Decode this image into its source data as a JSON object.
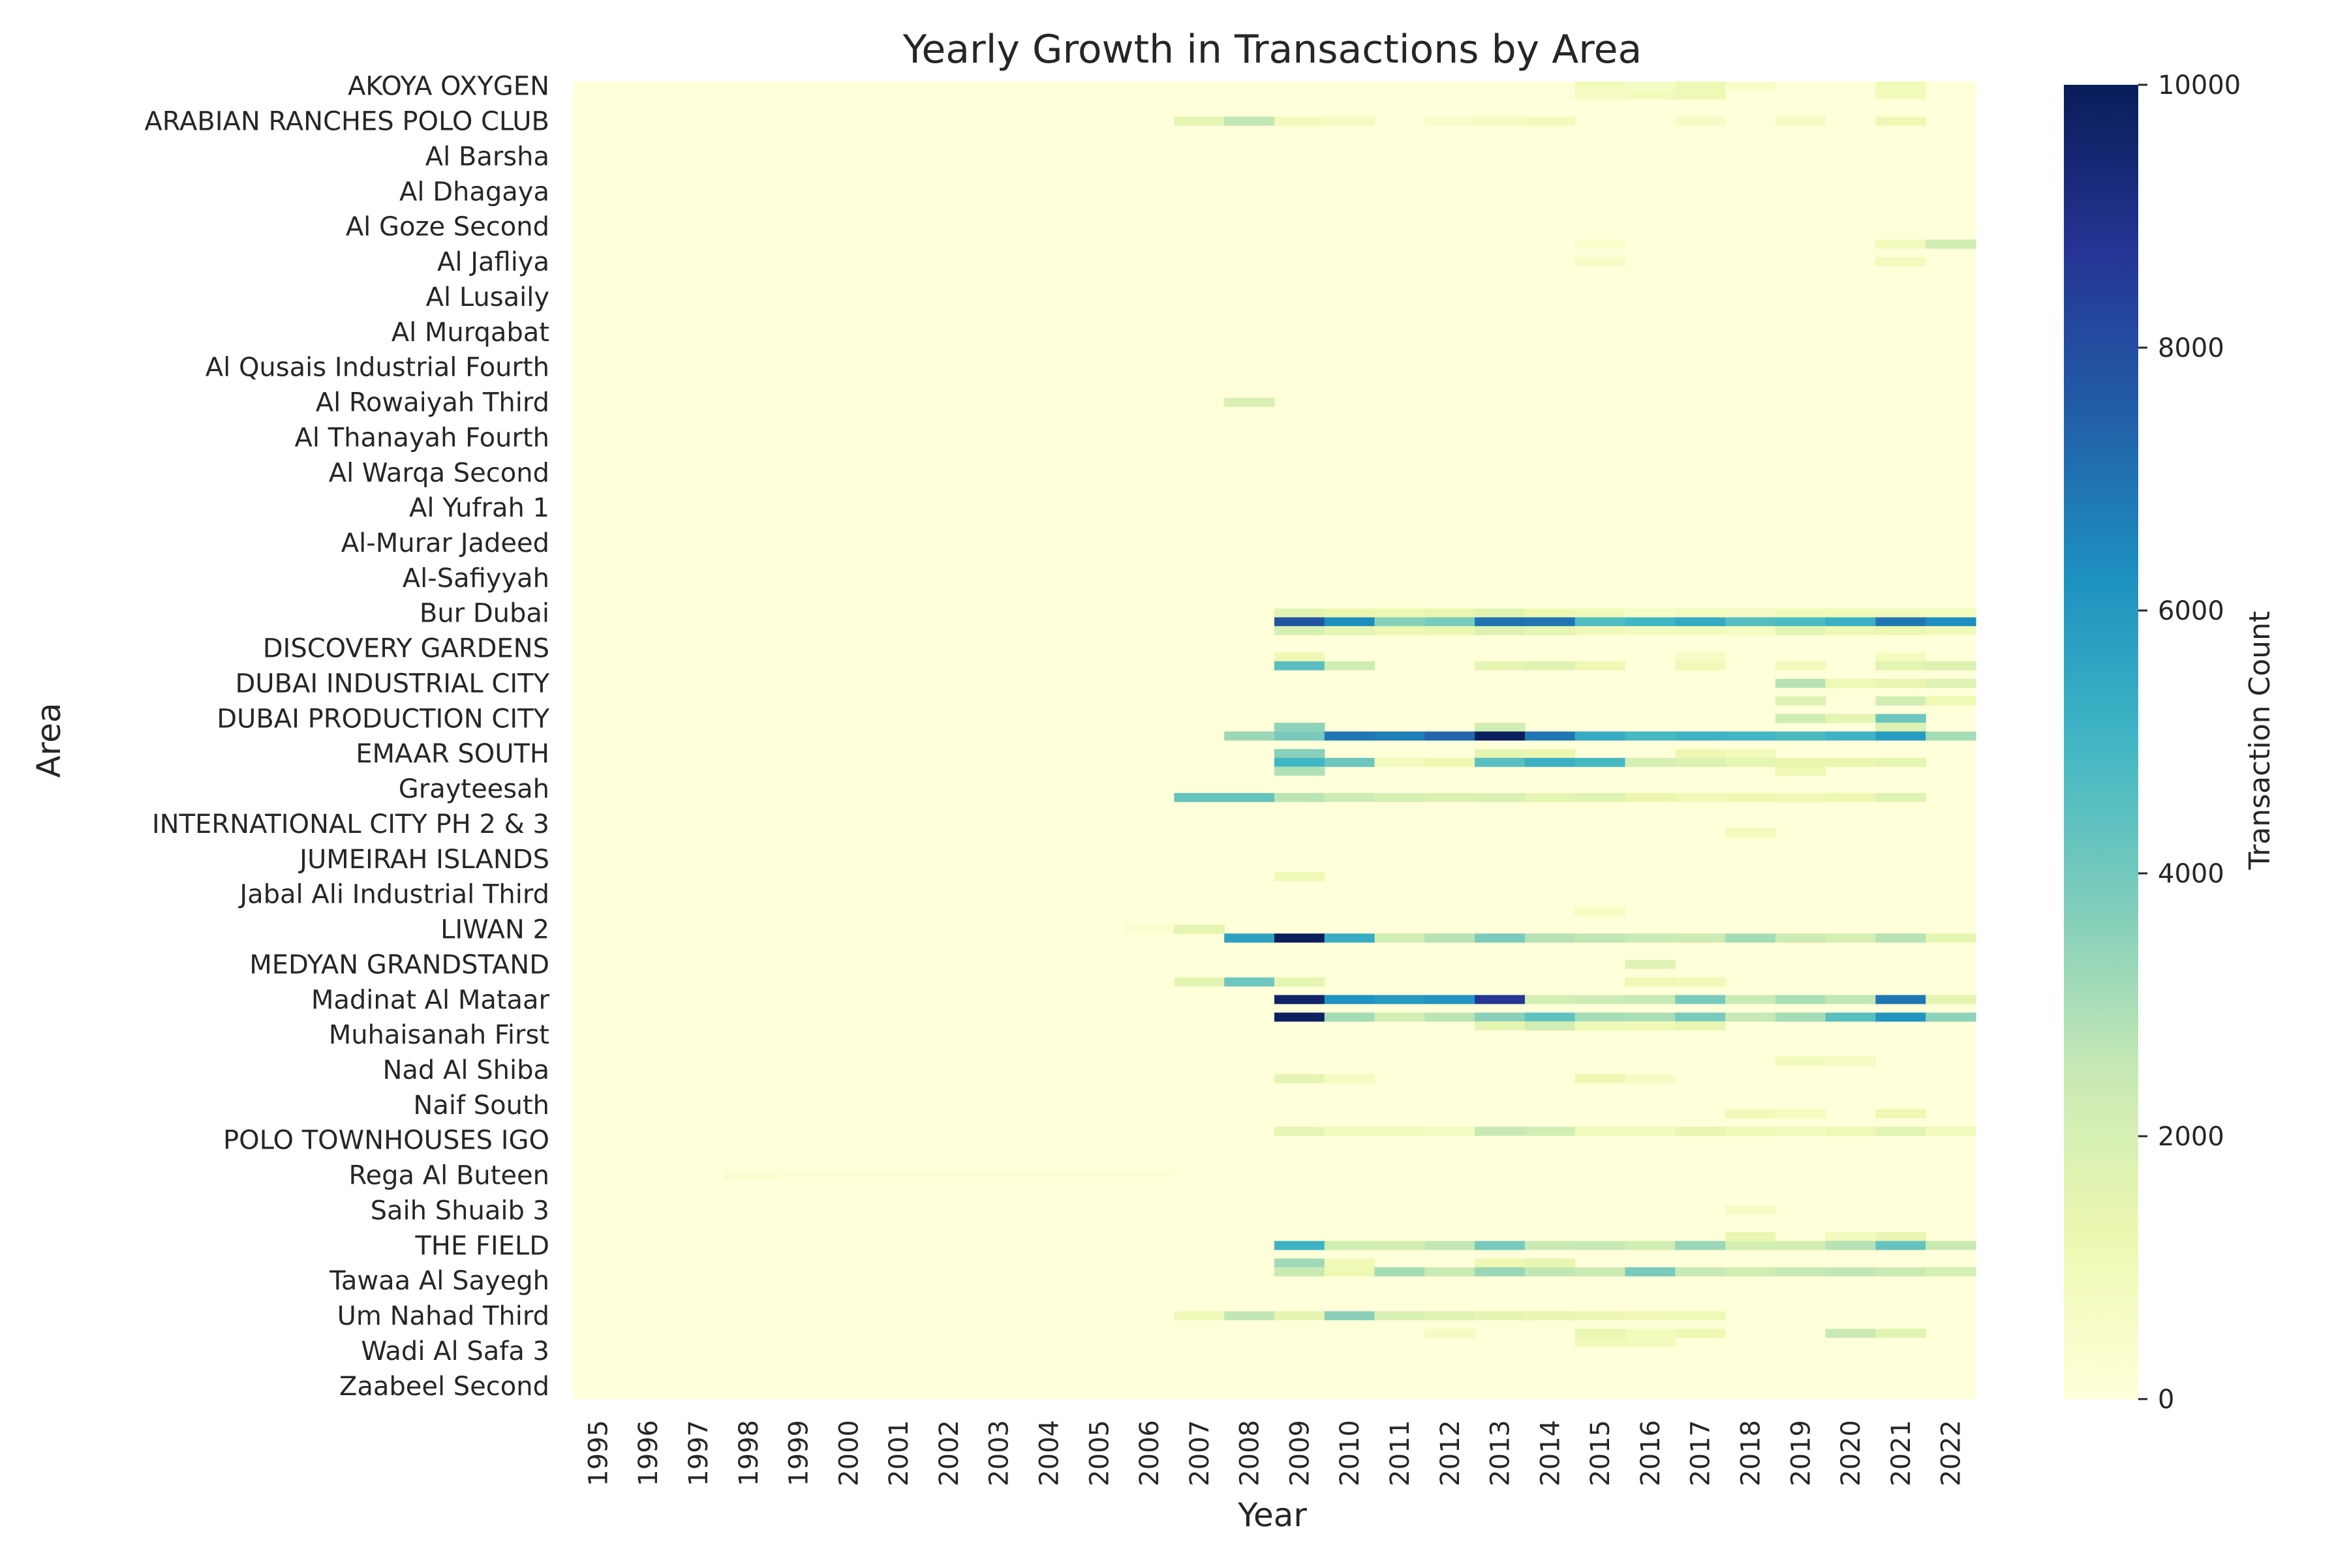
{
  "chart_data": {
    "type": "heatmap",
    "title": "Yearly Growth in Transactions by Area",
    "xlabel": "Year",
    "ylabel": "Area",
    "colorbar_label": "Transaction Count",
    "colormap": "YlGnBu",
    "vmin": 0,
    "vmax": 10000,
    "colorbar_ticks": [
      "0",
      "2000",
      "4000",
      "6000",
      "8000",
      "10000"
    ],
    "x": [
      "1995",
      "1996",
      "1997",
      "1998",
      "1999",
      "2000",
      "2001",
      "2002",
      "2003",
      "2004",
      "2005",
      "2006",
      "2007",
      "2008",
      "2009",
      "2010",
      "2011",
      "2012",
      "2013",
      "2014",
      "2015",
      "2016",
      "2017",
      "2018",
      "2019",
      "2020",
      "2021",
      "2022"
    ],
    "y_tick_labels": [
      "AKOYA OXYGEN",
      "ARABIAN RANCHES POLO CLUB",
      "Al Barsha",
      "Al Dhagaya",
      "Al Goze Second",
      "Al Jafliya",
      "Al Lusaily",
      "Al Murqabat",
      "Al Qusais Industrial Fourth",
      "Al Rowaiyah Third",
      "Al Thanayah Fourth",
      "Al Warqa Second",
      "Al Yufrah 1",
      "Al-Murar Jadeed",
      "Al-Safiyyah",
      "Bur Dubai",
      "DISCOVERY GARDENS",
      "DUBAI INDUSTRIAL CITY",
      "DUBAI PRODUCTION CITY",
      "EMAAR SOUTH",
      "Grayteesah",
      "INTERNATIONAL CITY PH 2 & 3",
      "JUMEIRAH ISLANDS",
      "Jabal Ali Industrial Third",
      "LIWAN 2",
      "MEDYAN GRANDSTAND",
      "Madinat Al Mataar",
      "Muhaisanah First",
      "Nad Al Shiba",
      "Naif South",
      "POLO TOWNHOUSES IGO",
      "Rega Al Buteen",
      "Saih Shuaib 3",
      "THE FIELD",
      "Tawaa Al Sayegh",
      "Um Nahad Third",
      "Wadi Al Safa 3",
      "Zaabeel Second"
    ],
    "rows_total": 150,
    "rows_per_tick": 4,
    "default_value": 0,
    "notable_rows": [
      {
        "row": 0,
        "values": {
          "2015": 900,
          "2016": 600,
          "2017": 1100,
          "2018": 500,
          "2021": 1000
        }
      },
      {
        "row": 1,
        "values": {
          "2015": 700,
          "2016": 900,
          "2017": 1200,
          "2021": 900
        }
      },
      {
        "row": 4,
        "values": {
          "2007": 1500,
          "2008": 2600,
          "2009": 900,
          "2010": 700,
          "2012": 500,
          "2013": 700,
          "2014": 900,
          "2017": 600,
          "2019": 700,
          "2021": 1100
        }
      },
      {
        "row": 18,
        "values": {
          "2015": 400,
          "2021": 900,
          "2022": 2200
        }
      },
      {
        "row": 20,
        "values": {
          "2015": 600,
          "2021": 900
        }
      },
      {
        "row": 36,
        "values": {
          "2008": 1900
        }
      },
      {
        "row": 60,
        "values": {
          "2009": 1600,
          "2010": 1300,
          "2011": 1200,
          "2012": 1400,
          "2013": 1600,
          "2014": 1200,
          "2015": 900,
          "2016": 600,
          "2017": 800,
          "2018": 700,
          "2019": 1000,
          "2020": 900,
          "2021": 900,
          "2022": 800
        }
      },
      {
        "row": 61,
        "values": {
          "2009": 7800,
          "2010": 6300,
          "2011": 3600,
          "2012": 3900,
          "2013": 7000,
          "2014": 6900,
          "2015": 4700,
          "2016": 5000,
          "2017": 5400,
          "2018": 4600,
          "2019": 4800,
          "2020": 5200,
          "2021": 6900,
          "2022": 6300
        }
      },
      {
        "row": 62,
        "values": {
          "2009": 2000,
          "2010": 1500,
          "2011": 1200,
          "2012": 1300,
          "2013": 1800,
          "2014": 1500,
          "2015": 1000,
          "2016": 800,
          "2017": 900,
          "2018": 700,
          "2019": 1600,
          "2020": 1200,
          "2021": 1300,
          "2022": 1000
        }
      },
      {
        "row": 65,
        "values": {
          "2009": 1200,
          "2017": 700,
          "2021": 800
        }
      },
      {
        "row": 66,
        "values": {
          "2009": 4500,
          "2010": 2200,
          "2013": 1500,
          "2014": 1700,
          "2015": 1200,
          "2017": 1000,
          "2019": 900,
          "2021": 1600,
          "2022": 1800
        }
      },
      {
        "row": 68,
        "values": {
          "2019": 2800,
          "2020": 1200,
          "2021": 1400,
          "2022": 1700
        }
      },
      {
        "row": 70,
        "values": {
          "2019": 1800,
          "2021": 2200,
          "2022": 1200
        }
      },
      {
        "row": 72,
        "values": {
          "2019": 2200,
          "2020": 1500,
          "2021": 4100
        }
      },
      {
        "row": 73,
        "values": {
          "2009": 3500,
          "2013": 2200,
          "2021": 1800
        }
      },
      {
        "row": 74,
        "values": {
          "2008": 3300,
          "2009": 3900,
          "2010": 6900,
          "2011": 6700,
          "2012": 7300,
          "2013": 9900,
          "2014": 6900,
          "2015": 5400,
          "2016": 4900,
          "2017": 5100,
          "2018": 5000,
          "2019": 4800,
          "2020": 5100,
          "2021": 5900,
          "2022": 3100
        }
      },
      {
        "row": 76,
        "values": {
          "2009": 3600,
          "2013": 1500,
          "2014": 1300,
          "2017": 1200,
          "2018": 900
        }
      },
      {
        "row": 77,
        "values": {
          "2009": 5000,
          "2010": 4100,
          "2011": 900,
          "2012": 1200,
          "2013": 4500,
          "2014": 5200,
          "2015": 4900,
          "2016": 2000,
          "2017": 1800,
          "2018": 1500,
          "2019": 1300,
          "2020": 1300,
          "2021": 1500
        }
      },
      {
        "row": 78,
        "values": {
          "2009": 2900,
          "2019": 1200
        }
      },
      {
        "row": 81,
        "values": {
          "2007": 4300,
          "2008": 4300,
          "2009": 2700,
          "2010": 2300,
          "2011": 2000,
          "2012": 1800,
          "2013": 1900,
          "2014": 1500,
          "2015": 1700,
          "2016": 1300,
          "2017": 1000,
          "2018": 1200,
          "2019": 1100,
          "2020": 1200,
          "2021": 1700
        }
      },
      {
        "row": 85,
        "values": {
          "2018": 900
        }
      },
      {
        "row": 90,
        "values": {
          "2009": 1000
        }
      },
      {
        "row": 94,
        "values": {
          "2015": 700
        }
      },
      {
        "row": 96,
        "values": {
          "2006": 300,
          "2007": 1500
        }
      },
      {
        "row": 97,
        "values": {
          "2008": 5700,
          "2009": 9900,
          "2010": 5300,
          "2011": 2200,
          "2012": 2800,
          "2013": 3900,
          "2014": 2800,
          "2015": 2600,
          "2016": 2400,
          "2017": 2300,
          "2018": 3100,
          "2019": 2300,
          "2020": 2000,
          "2021": 2800,
          "2022": 1500
        }
      },
      {
        "row": 100,
        "values": {
          "2016": 1700
        }
      },
      {
        "row": 102,
        "values": {
          "2007": 1600,
          "2008": 4100,
          "2009": 1500,
          "2016": 1200,
          "2017": 1000
        }
      },
      {
        "row": 104,
        "values": {
          "2009": 9700,
          "2010": 6200,
          "2011": 5900,
          "2012": 6100,
          "2013": 8700,
          "2014": 2100,
          "2015": 2300,
          "2016": 2500,
          "2017": 3900,
          "2018": 2400,
          "2019": 3000,
          "2020": 2600,
          "2021": 6900,
          "2022": 1500
        }
      },
      {
        "row": 106,
        "values": {
          "2009": 9800,
          "2010": 3100,
          "2011": 2100,
          "2012": 2700,
          "2013": 3600,
          "2014": 4400,
          "2015": 3100,
          "2016": 3000,
          "2017": 3900,
          "2018": 2500,
          "2019": 3100,
          "2020": 4500,
          "2021": 6100,
          "2022": 3500
        }
      },
      {
        "row": 107,
        "values": {
          "2013": 1500,
          "2014": 2200,
          "2015": 1100,
          "2016": 1000,
          "2017": 1400
        }
      },
      {
        "row": 111,
        "values": {
          "2019": 900,
          "2020": 700
        }
      },
      {
        "row": 113,
        "values": {
          "2009": 1500,
          "2010": 700,
          "2015": 1200,
          "2016": 600
        }
      },
      {
        "row": 117,
        "values": {
          "2018": 1000,
          "2019": 800,
          "2021": 1200
        }
      },
      {
        "row": 119,
        "values": {
          "2009": 1500,
          "2010": 900,
          "2011": 900,
          "2012": 800,
          "2013": 2500,
          "2014": 2200,
          "2015": 900,
          "2016": 900,
          "2017": 1400,
          "2018": 1100,
          "2019": 900,
          "2020": 1200,
          "2021": 1600,
          "2022": 900
        }
      },
      {
        "row": 124,
        "values": {
          "1998": 300,
          "1999": 200,
          "2000": 200,
          "2001": 200,
          "2002": 200,
          "2003": 200,
          "2004": 200,
          "2005": 200,
          "2006": 200
        }
      },
      {
        "row": 128,
        "values": {
          "2018": 700
        }
      },
      {
        "row": 131,
        "values": {
          "2018": 1300,
          "2020": 900,
          "2021": 1400
        }
      },
      {
        "row": 132,
        "values": {
          "2009": 5100,
          "2010": 2200,
          "2011": 2100,
          "2012": 2600,
          "2013": 3900,
          "2014": 2400,
          "2015": 2500,
          "2016": 2200,
          "2017": 3300,
          "2018": 2100,
          "2019": 2100,
          "2020": 2800,
          "2021": 4300,
          "2022": 2400
        }
      },
      {
        "row": 134,
        "values": {
          "2009": 3200,
          "2010": 1000,
          "2013": 1200,
          "2014": 1400
        }
      },
      {
        "row": 135,
        "values": {
          "2009": 2400,
          "2010": 1200,
          "2011": 3100,
          "2012": 2400,
          "2013": 3300,
          "2014": 2600,
          "2015": 2400,
          "2016": 3900,
          "2017": 2500,
          "2018": 2200,
          "2019": 2500,
          "2020": 2600,
          "2021": 2400,
          "2022": 2000
        }
      },
      {
        "row": 140,
        "values": {
          "2007": 1100,
          "2008": 2600,
          "2009": 1500,
          "2010": 3600,
          "2011": 1900,
          "2012": 1700,
          "2013": 1500,
          "2014": 1300,
          "2015": 1200,
          "2016": 1000,
          "2017": 1100
        }
      },
      {
        "row": 142,
        "values": {
          "2012": 700,
          "2015": 1400,
          "2016": 900,
          "2017": 1200,
          "2020": 2400,
          "2021": 1600
        }
      },
      {
        "row": 143,
        "values": {
          "2015": 1000,
          "2016": 900
        }
      }
    ]
  }
}
